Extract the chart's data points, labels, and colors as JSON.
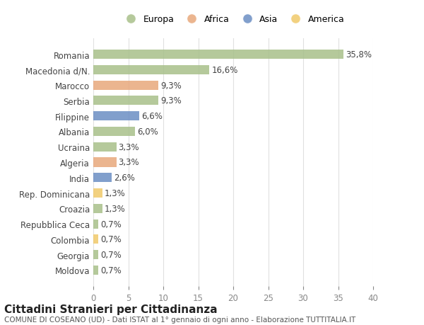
{
  "countries": [
    "Romania",
    "Macedonia d/N.",
    "Marocco",
    "Serbia",
    "Filippine",
    "Albania",
    "Ucraina",
    "Algeria",
    "India",
    "Rep. Dominicana",
    "Croazia",
    "Repubblica Ceca",
    "Colombia",
    "Georgia",
    "Moldova"
  ],
  "values": [
    35.8,
    16.6,
    9.3,
    9.3,
    6.6,
    6.0,
    3.3,
    3.3,
    2.6,
    1.3,
    1.3,
    0.7,
    0.7,
    0.7,
    0.7
  ],
  "labels": [
    "35,8%",
    "16,6%",
    "9,3%",
    "9,3%",
    "6,6%",
    "6,0%",
    "3,3%",
    "3,3%",
    "2,6%",
    "1,3%",
    "1,3%",
    "0,7%",
    "0,7%",
    "0,7%",
    "0,7%"
  ],
  "continents": [
    "Europa",
    "Europa",
    "Africa",
    "Europa",
    "Asia",
    "Europa",
    "Europa",
    "Africa",
    "Asia",
    "America",
    "Europa",
    "Europa",
    "America",
    "Europa",
    "Europa"
  ],
  "continent_colors": {
    "Europa": "#a8c08a",
    "Africa": "#e8a87c",
    "Asia": "#6b8ec4",
    "America": "#f0c96a"
  },
  "legend_order": [
    "Europa",
    "Africa",
    "Asia",
    "America"
  ],
  "title": "Cittadini Stranieri per Cittadinanza",
  "subtitle": "COMUNE DI COSEANO (UD) - Dati ISTAT al 1° gennaio di ogni anno - Elaborazione TUTTITALIA.IT",
  "xlim": [
    0,
    40
  ],
  "xticks": [
    0,
    5,
    10,
    15,
    20,
    25,
    30,
    35,
    40
  ],
  "bg_color": "#ffffff",
  "grid_color": "#e0e0e0",
  "bar_height": 0.6,
  "label_fontsize": 8.5,
  "tick_fontsize": 8.5,
  "title_fontsize": 11,
  "subtitle_fontsize": 7.5
}
